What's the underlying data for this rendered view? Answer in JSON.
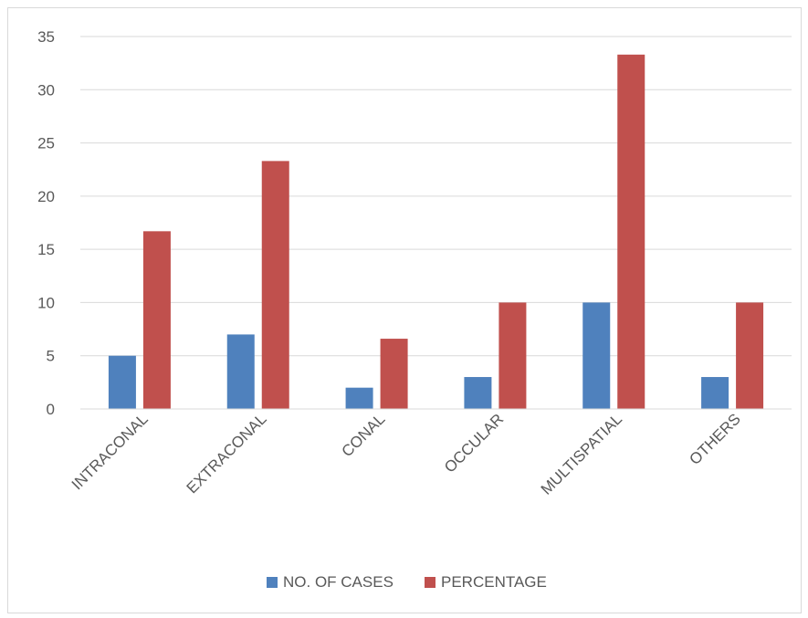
{
  "chart_data": {
    "type": "bar",
    "title": "",
    "xlabel": "",
    "ylabel": "",
    "categories": [
      "INTRACONAL",
      "EXTRACONAL",
      "CONAL",
      "OCCULAR",
      "MULTISPATIAL",
      "OTHERS"
    ],
    "series": [
      {
        "name": "NO. OF CASES",
        "color": "#4f81bd",
        "values": [
          5,
          7,
          2,
          3,
          10,
          3
        ]
      },
      {
        "name": "PERCENTAGE",
        "color": "#c0504d",
        "values": [
          16.7,
          23.3,
          6.6,
          10,
          33.3,
          10
        ]
      }
    ],
    "ylim": [
      0,
      35
    ],
    "yticks": [
      0,
      5,
      10,
      15,
      20,
      25,
      30,
      35
    ],
    "grid": true,
    "legend_position": "bottom",
    "colors": {
      "gridline": "#d9d9d9",
      "axis_text": "#595959"
    }
  }
}
